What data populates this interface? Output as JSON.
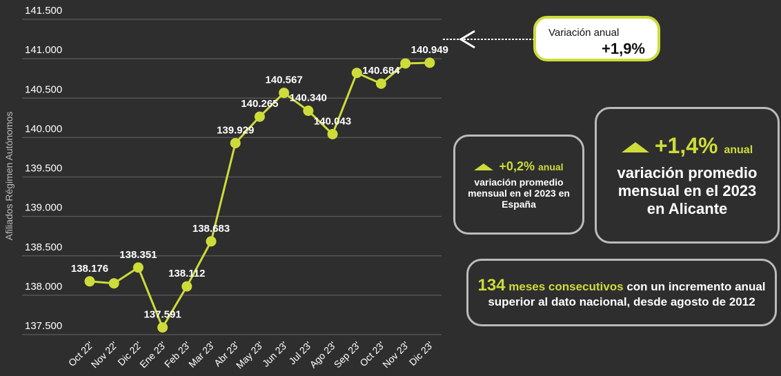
{
  "chart_data": {
    "type": "line",
    "ylabel": "Afiliados Régimen Autónomos",
    "categories": [
      "Oct 22'",
      "Nov 22'",
      "Dic 22'",
      "Ene 23'",
      "Feb 23'",
      "Mar 23'",
      "Abr 23'",
      "May 23'",
      "Jun 23'",
      "Jul 23'",
      "Ago 23'",
      "Sep 23'",
      "Oct 23'",
      "Nov 23'",
      "Dic 23'"
    ],
    "series": [
      {
        "name": "Afiliados",
        "color": "#cddc39",
        "values": [
          138176,
          138150,
          138351,
          137591,
          138112,
          138683,
          139929,
          140265,
          140567,
          140340,
          140043,
          140820,
          140684,
          140940,
          140949
        ],
        "value_labels": [
          "138.176",
          null,
          "138.351",
          "137.591",
          "138.112",
          "138.683",
          "139.929",
          "140.265",
          "140.567",
          "140.340",
          "140.043",
          null,
          "140.684",
          null,
          "140.949"
        ]
      }
    ],
    "ylim": [
      137500,
      141500
    ],
    "yticks": [
      {
        "value": 137500,
        "label": "137.500"
      },
      {
        "value": 138000,
        "label": "138.000"
      },
      {
        "value": 138500,
        "label": "138.500"
      },
      {
        "value": 139000,
        "label": "139.000"
      },
      {
        "value": 139500,
        "label": "139.500"
      },
      {
        "value": 140000,
        "label": "140.000"
      },
      {
        "value": 140500,
        "label": "140.500"
      },
      {
        "value": 141000,
        "label": "141.000"
      },
      {
        "value": 141500,
        "label": "141.500"
      }
    ],
    "grid": true,
    "annotation": {
      "title": "Variación anual",
      "value": "+1,9%"
    }
  },
  "cards": [
    {
      "value": "+0,2%",
      "unit": "anual",
      "text": "variación promedio mensual en el 2023 en España"
    },
    {
      "value": "+1,4%",
      "unit": "anual",
      "text": "variación promedio mensual en el 2023 en Alicante"
    },
    {
      "value": "134",
      "highlight": "meses consecutivos",
      "text": "con un incremento anual superior al dato nacional, desde agosto de 2012"
    }
  ]
}
